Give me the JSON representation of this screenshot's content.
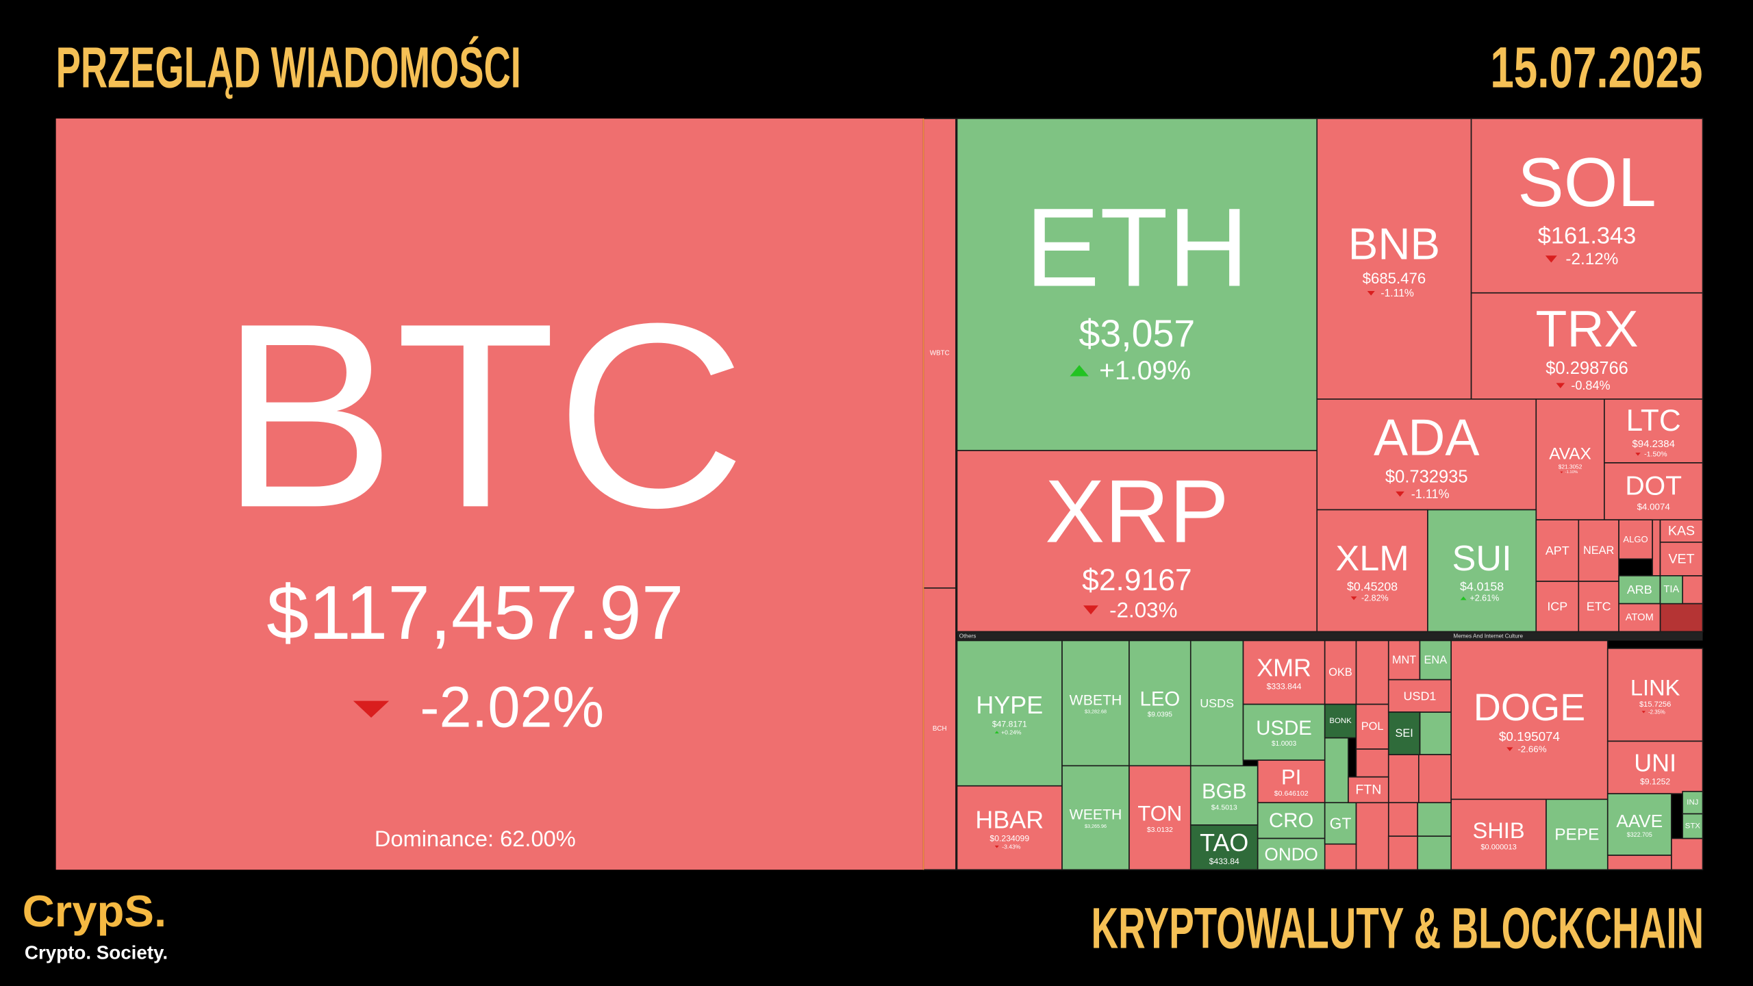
{
  "header": {
    "title": "PRZEGLĄD WIADOMOŚCI",
    "date": "15.07.2025"
  },
  "footer": {
    "tagline": "KRYPTOWALUTY & BLOCKCHAIN"
  },
  "logo": {
    "name": "CrypS.",
    "subtitle": "Crypto. Society."
  },
  "heatmap": {
    "btc": {
      "symbol": "BTC",
      "price": "$117,457.97",
      "change": "-2.02%",
      "note": "Dominance: 62.00%"
    },
    "sections": [
      "Others",
      "Memes And Internet Culture"
    ],
    "tiles": [
      {
        "symbol": "ETH",
        "price": "$3,057",
        "change": "+1.09%"
      },
      {
        "symbol": "XRP",
        "price": "$2.9167",
        "change": "-2.03%"
      },
      {
        "symbol": "BNB",
        "price": "$685.476",
        "change": "-1.11%"
      },
      {
        "symbol": "SOL",
        "price": "$161.343",
        "change": "-2.12%"
      },
      {
        "symbol": "TRX",
        "price": "$0.298766",
        "change": "-0.84%"
      },
      {
        "symbol": "ADA",
        "price": "$0.732935",
        "change": "-1.11%"
      },
      {
        "symbol": "AVAX",
        "price": "$21.3052",
        "change": "-1.10%"
      },
      {
        "symbol": "LTC",
        "price": "$94.2384",
        "change": "-1.50%"
      },
      {
        "symbol": "DOT",
        "price": "$4.0074"
      },
      {
        "symbol": "XLM",
        "price": "$0.45208",
        "change": "-2.82%"
      },
      {
        "symbol": "SUI",
        "price": "$4.0158",
        "change": "+2.61%"
      },
      {
        "symbol": "APT"
      },
      {
        "symbol": "NEAR"
      },
      {
        "symbol": "ALGO"
      },
      {
        "symbol": "KAS"
      },
      {
        "symbol": "VET"
      },
      {
        "symbol": "ICP"
      },
      {
        "symbol": "ETC"
      },
      {
        "symbol": "ARB"
      },
      {
        "symbol": "TIA"
      },
      {
        "symbol": "ATOM"
      },
      {
        "symbol": "HYPE",
        "price": "$47.8171",
        "change": "+0.24%"
      },
      {
        "symbol": "HBAR",
        "price": "$0.234099",
        "change": "-3.43%"
      },
      {
        "symbol": "WBETH",
        "price": "$3,282.68"
      },
      {
        "symbol": "WEETH",
        "price": "$3,265.96"
      },
      {
        "symbol": "LEO",
        "price": "$9.0395"
      },
      {
        "symbol": "TON",
        "price": "$3.0132"
      },
      {
        "symbol": "USDS"
      },
      {
        "symbol": "BGB",
        "price": "$4.5013"
      },
      {
        "symbol": "TAO",
        "price": "$433.84"
      },
      {
        "symbol": "XMR",
        "price": "$333.844"
      },
      {
        "symbol": "USDE",
        "price": "$1.0003"
      },
      {
        "symbol": "PI",
        "price": "$0.646102"
      },
      {
        "symbol": "CRO"
      },
      {
        "symbol": "ONDO"
      },
      {
        "symbol": "OKB"
      },
      {
        "symbol": "BONK"
      },
      {
        "symbol": "POL"
      },
      {
        "symbol": "MNT"
      },
      {
        "symbol": "ENA"
      },
      {
        "symbol": "USD1"
      },
      {
        "symbol": "SEI"
      },
      {
        "symbol": "GT"
      },
      {
        "symbol": "FTN"
      },
      {
        "symbol": "DOGE",
        "price": "$0.195074",
        "change": "-2.66%"
      },
      {
        "symbol": "SHIB",
        "price": "$0.000013"
      },
      {
        "symbol": "PEPE"
      },
      {
        "symbol": "LINK",
        "price": "$15.7256",
        "change": "-2.35%"
      },
      {
        "symbol": "UNI",
        "price": "$9.1252"
      },
      {
        "symbol": "AAVE",
        "price": "$322.705"
      },
      {
        "symbol": "INJ"
      },
      {
        "symbol": "STX"
      },
      {
        "symbol": "WBTC"
      },
      {
        "symbol": "BCH"
      }
    ]
  }
}
